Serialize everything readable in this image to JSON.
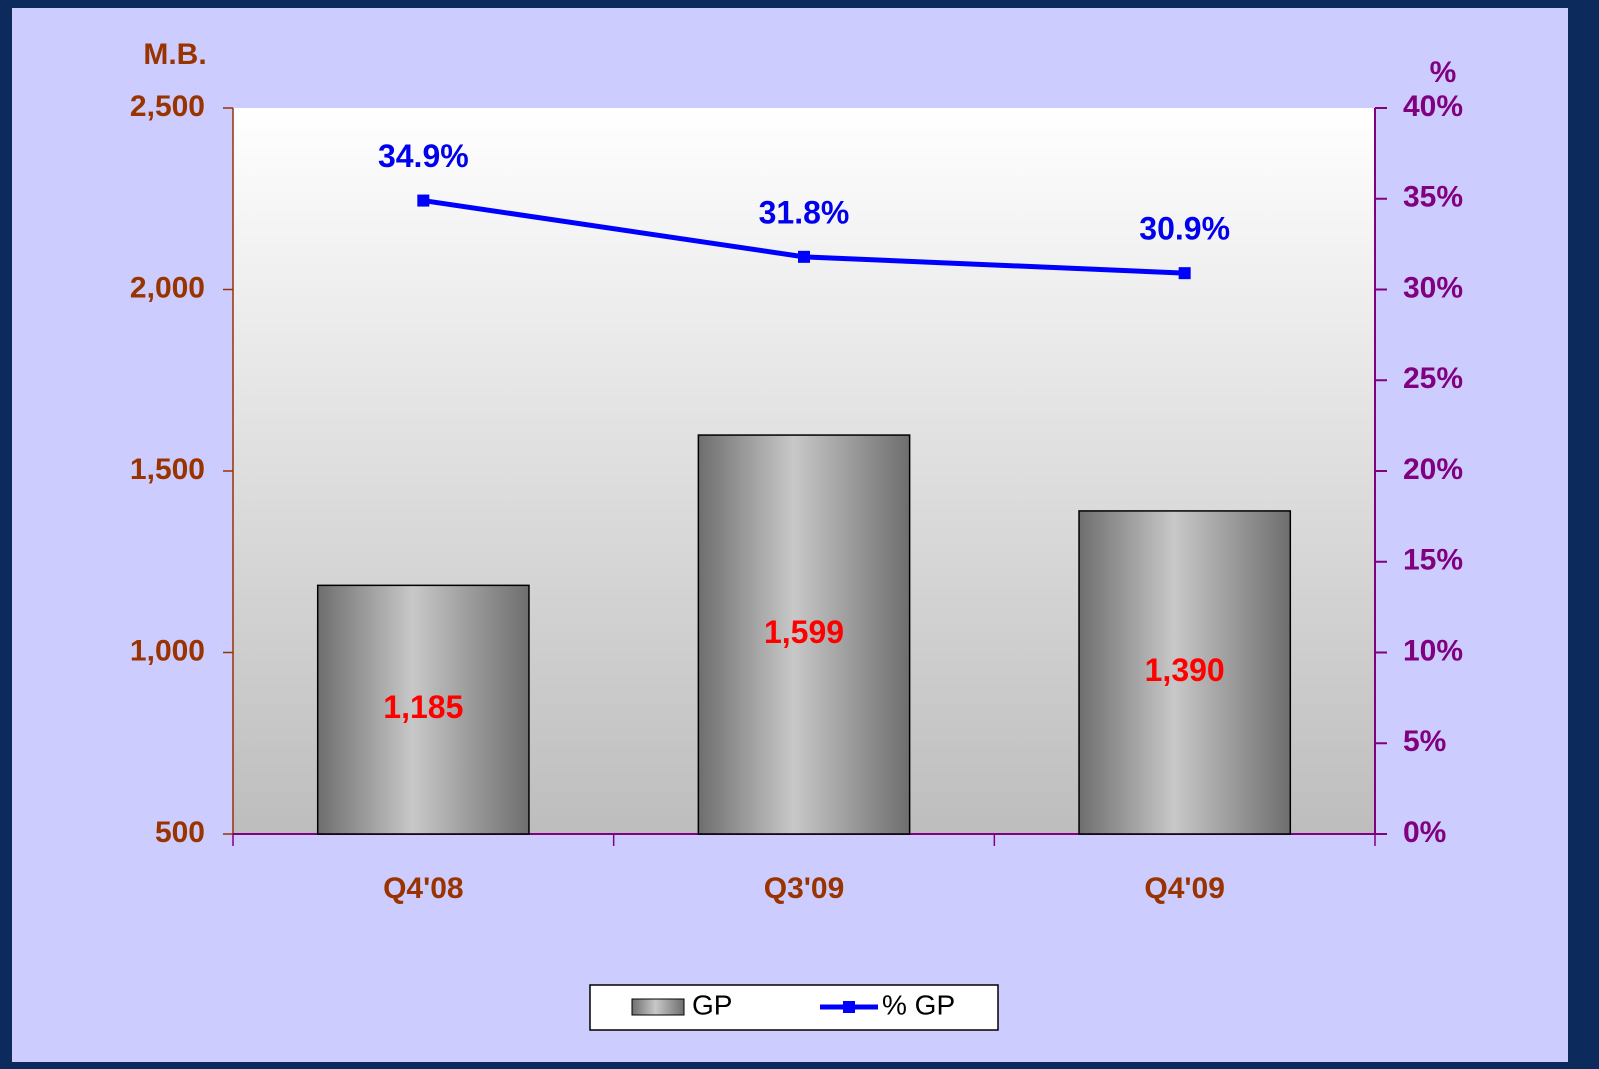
{
  "chart_data": {
    "type": "bar-line",
    "y_label": "M.B.",
    "y2_label": "%",
    "categories": [
      "Q4'08",
      "Q3'09",
      "Q4'09"
    ],
    "series": [
      {
        "name": "GP",
        "type": "bar",
        "color": "#c8c8c8",
        "values": [
          1185,
          1599,
          1390
        ],
        "value_labels": [
          "1,185",
          "1,599",
          "1,390"
        ]
      },
      {
        "name": "% GP",
        "type": "line",
        "axis": "y2",
        "color": "#0000ff",
        "values": [
          34.9,
          31.8,
          30.9
        ],
        "value_labels": [
          "34.9%",
          "31.8%",
          "30.9%"
        ]
      }
    ],
    "ylim": [
      500,
      2500
    ],
    "yticks": [
      500,
      {
        "value": 1000,
        "label": "1,000"
      },
      {
        "value": 1500,
        "label": "1,500"
      },
      {
        "value": 2000,
        "label": "2,000"
      },
      {
        "value": 2500,
        "label": "2,500"
      }
    ],
    "y2lim": [
      0,
      40
    ],
    "y2ticks": [
      {
        "value": 0,
        "label": "0%"
      },
      {
        "value": 5,
        "label": "5%"
      },
      {
        "value": 10,
        "label": "10%"
      },
      {
        "value": 15,
        "label": "15%"
      },
      {
        "value": 20,
        "label": "20%"
      },
      {
        "value": 25,
        "label": "25%"
      },
      {
        "value": 30,
        "label": "30%"
      },
      {
        "value": 35,
        "label": "35%"
      },
      {
        "value": 40,
        "label": "40%"
      }
    ],
    "legend": "bottom"
  }
}
